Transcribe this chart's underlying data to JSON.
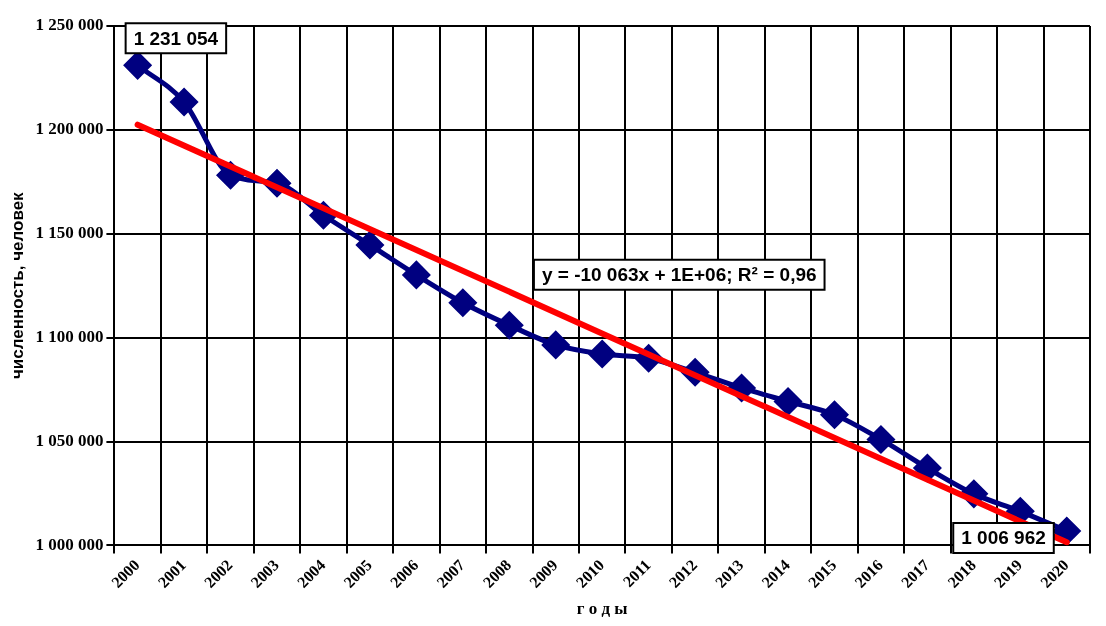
{
  "chart_data": {
    "type": "line",
    "xlabel": "г о д ы",
    "ylabel": "численность, человек",
    "categories": [
      "2000",
      "2001",
      "2002",
      "2003",
      "2004",
      "2005",
      "2006",
      "2007",
      "2008",
      "2009",
      "2010",
      "2011",
      "2012",
      "2013",
      "2014",
      "2015",
      "2016",
      "2017",
      "2018",
      "2019",
      "2020"
    ],
    "series": [
      {
        "color": "#000080",
        "marker": "diamond",
        "values": [
          1231054,
          1213400,
          1178200,
          1174300,
          1158900,
          1144600,
          1130200,
          1116800,
          1106000,
          1096500,
          1092100,
          1090100,
          1083300,
          1075800,
          1069300,
          1062900,
          1051000,
          1037200,
          1024800,
          1016400,
          1006962
        ]
      },
      {
        "color": "#ff0000",
        "marker": "none",
        "values": [
          1202500,
          null,
          null,
          null,
          null,
          null,
          null,
          null,
          null,
          null,
          null,
          null,
          null,
          null,
          null,
          null,
          null,
          null,
          null,
          null,
          1001500
        ]
      }
    ],
    "ylim": [
      1000000,
      1250000
    ],
    "yticks": [
      {
        "value": 1000000,
        "label": "1 000 000"
      },
      {
        "value": 1050000,
        "label": "1 050 000"
      },
      {
        "value": 1100000,
        "label": "1 100 000"
      },
      {
        "value": 1150000,
        "label": "1 150 000"
      },
      {
        "value": 1200000,
        "label": "1 200 000"
      },
      {
        "value": 1250000,
        "label": "1 250 000"
      }
    ],
    "grid": true,
    "legend": false,
    "annotations": [
      {
        "text": "1 231 054",
        "x": "2000",
        "y": 1231054
      },
      {
        "text": "1 006 962",
        "x": "2020",
        "y": 1006962
      },
      "y = -10 063x + 1E+06; R² = 0,96"
    ]
  }
}
